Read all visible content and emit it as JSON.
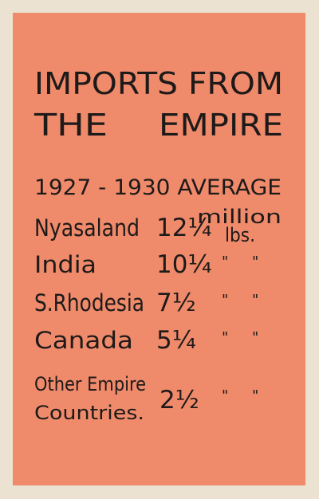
{
  "title": {
    "line1": "IMPORTS FROM",
    "line2_left": "THE",
    "line2_right": "EMPIRE"
  },
  "subtitle": "1927 - 1930 AVERAGE",
  "unit": {
    "line1": "million",
    "line2": "lbs."
  },
  "rows": [
    {
      "country": [
        "Nyasaland"
      ],
      "amount": "12¼"
    },
    {
      "country": [
        "India"
      ],
      "amount": "10¼",
      "ditto": [
        "\"",
        "\""
      ]
    },
    {
      "country": [
        "S.Rhodesia"
      ],
      "amount": "7½",
      "ditto": [
        "\"",
        "\""
      ]
    },
    {
      "country": [
        "Canada"
      ],
      "amount": "5¼",
      "ditto": [
        "\"",
        "\""
      ]
    },
    {
      "country": [
        "Other Empire",
        "Countries."
      ],
      "amount": "2½",
      "ditto": [
        "\"",
        "\""
      ]
    }
  ]
}
